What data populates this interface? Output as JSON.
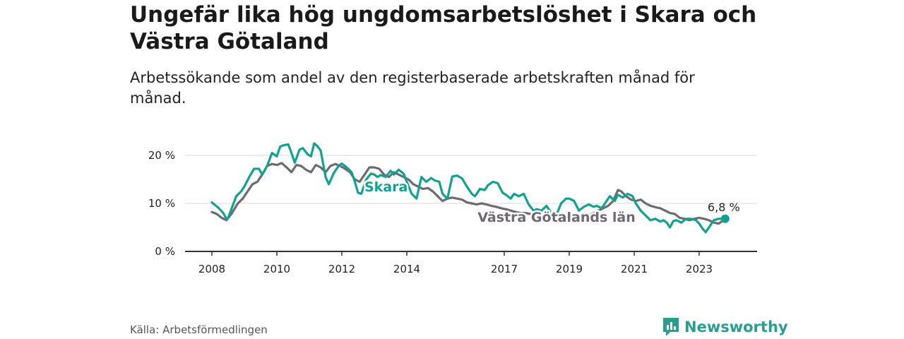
{
  "title": "Ungefär lika hög ungdomsarbetslöshet i Skara och Västra Götaland",
  "subtitle": "Arbetssökande som andel av den registerbaserade arbetskraften månad för månad.",
  "source": "Källa: Arbetsförmedlingen",
  "logo_text": "Newsworthy",
  "colors": {
    "skara": "#14a090",
    "vgl": "#6e6a72",
    "logo": "#2a9d8f"
  },
  "chart_data": {
    "type": "line",
    "title": "Ungefär lika hög ungdomsarbetslöshet i Skara och Västra Götaland",
    "ylabel": "",
    "xlabel": "",
    "ylim": [
      0,
      20
    ],
    "xlim": [
      2008.0,
      2024.0
    ],
    "y_ticks": [
      0,
      10,
      20
    ],
    "y_tick_labels": [
      "0 %",
      "10 %",
      "20 %"
    ],
    "x_ticks": [
      2008,
      2010,
      2012,
      2014,
      2017,
      2019,
      2021,
      2023
    ],
    "x_tick_labels": [
      "2008",
      "2010",
      "2012",
      "2014",
      "2017",
      "2019",
      "2021",
      "2023"
    ],
    "end_label": "6,8 %",
    "series": [
      {
        "name": "Skara",
        "x": [
          2008.0,
          2008.2,
          2008.35,
          2008.45,
          2008.5,
          2008.6,
          2008.75,
          2008.9,
          2009.0,
          2009.15,
          2009.3,
          2009.45,
          2009.55,
          2009.7,
          2009.85,
          2010.0,
          2010.1,
          2010.2,
          2010.35,
          2010.45,
          2010.55,
          2010.7,
          2010.8,
          2010.95,
          2011.05,
          2011.15,
          2011.25,
          2011.35,
          2011.5,
          2011.6,
          2011.75,
          2011.9,
          2012.0,
          2012.15,
          2012.3,
          2012.4,
          2012.5,
          2012.6,
          2012.75,
          2012.9,
          2013.0,
          2013.1,
          2013.2,
          2013.35,
          2013.5,
          2013.6,
          2013.75,
          2013.9,
          2014.0,
          2014.15,
          2014.3,
          2014.45,
          2014.6,
          2014.75,
          2014.85,
          2015.0,
          2015.1,
          2015.25,
          2015.4,
          2015.55,
          2015.7,
          2015.85,
          2016.0,
          2016.1,
          2016.25,
          2016.4,
          2016.5,
          2016.65,
          2016.8,
          2016.95,
          2017.05,
          2017.2,
          2017.3,
          2017.45,
          2017.6,
          2017.75,
          2017.9,
          2018.0,
          2018.15,
          2018.3,
          2018.45,
          2018.6,
          2018.75,
          2018.9,
          2019.0,
          2019.15,
          2019.3,
          2019.45,
          2019.6,
          2019.75,
          2019.85,
          2020.0,
          2020.1,
          2020.25,
          2020.4,
          2020.5,
          2020.65,
          2020.8,
          2020.95,
          2021.05,
          2021.2,
          2021.35,
          2021.5,
          2021.65,
          2021.8,
          2021.9,
          2022.0,
          2022.1,
          2022.2,
          2022.3,
          2022.45,
          2022.6,
          2022.75,
          2022.9,
          2023.0,
          2023.1,
          2023.2,
          2023.35,
          2023.45,
          2023.6,
          2023.75,
          2023.8
        ],
        "values": [
          10.2,
          9.1,
          8.0,
          6.8,
          7.0,
          8.8,
          11.5,
          12.5,
          13.5,
          15.5,
          17.2,
          17.2,
          16.0,
          17.8,
          20.5,
          19.8,
          21.8,
          22.1,
          22.3,
          20.5,
          18.5,
          21.2,
          21.5,
          20.2,
          19.8,
          22.5,
          21.9,
          21.0,
          15.5,
          14.0,
          16.3,
          17.8,
          18.3,
          17.5,
          16.5,
          14.5,
          12.2,
          12.0,
          15.0,
          16.2,
          16.0,
          15.5,
          15.9,
          15.5,
          16.8,
          16.0,
          17.0,
          16.2,
          14.5,
          12.0,
          11.0,
          15.5,
          14.5,
          15.3,
          14.8,
          14.5,
          12.0,
          11.0,
          15.6,
          15.8,
          15.2,
          13.5,
          12.0,
          11.5,
          13.0,
          12.8,
          13.8,
          14.5,
          14.2,
          12.2,
          11.8,
          11.0,
          12.0,
          11.5,
          12.0,
          9.8,
          8.5,
          8.8,
          8.5,
          9.5,
          8.0,
          7.5,
          10.0,
          11.0,
          11.0,
          10.5,
          8.5,
          9.3,
          9.8,
          9.3,
          9.5,
          9.0,
          10.0,
          11.5,
          10.5,
          11.8,
          11.2,
          12.0,
          11.5,
          10.0,
          8.5,
          7.5,
          6.5,
          6.8,
          6.2,
          6.5,
          6.0,
          5.0,
          6.3,
          6.5,
          6.0,
          6.8,
          6.8,
          6.5,
          5.8,
          4.8,
          4.0,
          5.5,
          6.5,
          6.8,
          6.8,
          6.8
        ]
      },
      {
        "name": "Västra Götalands län",
        "x": [
          2008.0,
          2008.15,
          2008.3,
          2008.45,
          2008.6,
          2008.8,
          2008.95,
          2009.1,
          2009.25,
          2009.4,
          2009.55,
          2009.7,
          2009.85,
          2010.0,
          2010.15,
          2010.3,
          2010.45,
          2010.6,
          2010.75,
          2010.9,
          2011.05,
          2011.2,
          2011.35,
          2011.5,
          2011.65,
          2011.8,
          2011.95,
          2012.1,
          2012.25,
          2012.4,
          2012.55,
          2012.7,
          2012.85,
          2013.0,
          2013.15,
          2013.3,
          2013.45,
          2013.6,
          2013.75,
          2013.9,
          2014.05,
          2014.2,
          2014.35,
          2014.5,
          2014.65,
          2014.8,
          2014.95,
          2015.1,
          2015.25,
          2015.4,
          2015.55,
          2015.7,
          2015.85,
          2016.0,
          2016.15,
          2016.3,
          2016.45,
          2016.6,
          2016.75,
          2016.9,
          2017.05,
          2017.2,
          2017.35,
          2017.5,
          2017.65,
          2017.8,
          2017.95,
          2018.1,
          2018.25,
          2018.4,
          2018.55,
          2018.7,
          2018.85,
          2019.0,
          2019.15,
          2019.3,
          2019.45,
          2019.6,
          2019.75,
          2019.9,
          2020.05,
          2020.2,
          2020.35,
          2020.5,
          2020.6,
          2020.75,
          2020.9,
          2021.05,
          2021.2,
          2021.35,
          2021.5,
          2021.65,
          2021.8,
          2021.95,
          2022.1,
          2022.25,
          2022.4,
          2022.55,
          2022.7,
          2022.85,
          2023.0,
          2023.15,
          2023.3,
          2023.45,
          2023.6,
          2023.75,
          2023.8
        ],
        "values": [
          8.2,
          7.8,
          7.0,
          6.5,
          7.8,
          10.0,
          11.0,
          12.5,
          14.0,
          14.5,
          16.0,
          17.8,
          18.2,
          18.0,
          18.4,
          17.5,
          16.5,
          18.0,
          17.8,
          17.0,
          16.5,
          18.0,
          17.5,
          16.5,
          17.8,
          18.2,
          17.8,
          17.2,
          16.5,
          15.0,
          14.5,
          16.0,
          17.5,
          17.5,
          17.2,
          16.0,
          15.5,
          16.5,
          16.0,
          15.5,
          15.0,
          14.0,
          13.5,
          13.0,
          13.2,
          12.5,
          11.5,
          10.5,
          11.0,
          11.2,
          11.0,
          10.8,
          10.2,
          10.0,
          9.8,
          10.0,
          9.8,
          9.5,
          9.3,
          9.0,
          8.8,
          8.5,
          8.2,
          8.0,
          8.0,
          7.8,
          7.5,
          7.5,
          7.2,
          7.5,
          7.3,
          7.5,
          7.0,
          7.0,
          6.8,
          6.8,
          7.0,
          7.5,
          8.0,
          8.5,
          9.0,
          9.5,
          10.5,
          12.8,
          12.5,
          11.5,
          10.8,
          10.5,
          10.8,
          10.0,
          9.5,
          9.2,
          9.0,
          8.5,
          8.0,
          7.8,
          7.0,
          6.8,
          6.5,
          6.8,
          7.0,
          6.8,
          6.5,
          6.0,
          5.8,
          6.5,
          6.8
        ]
      }
    ]
  }
}
